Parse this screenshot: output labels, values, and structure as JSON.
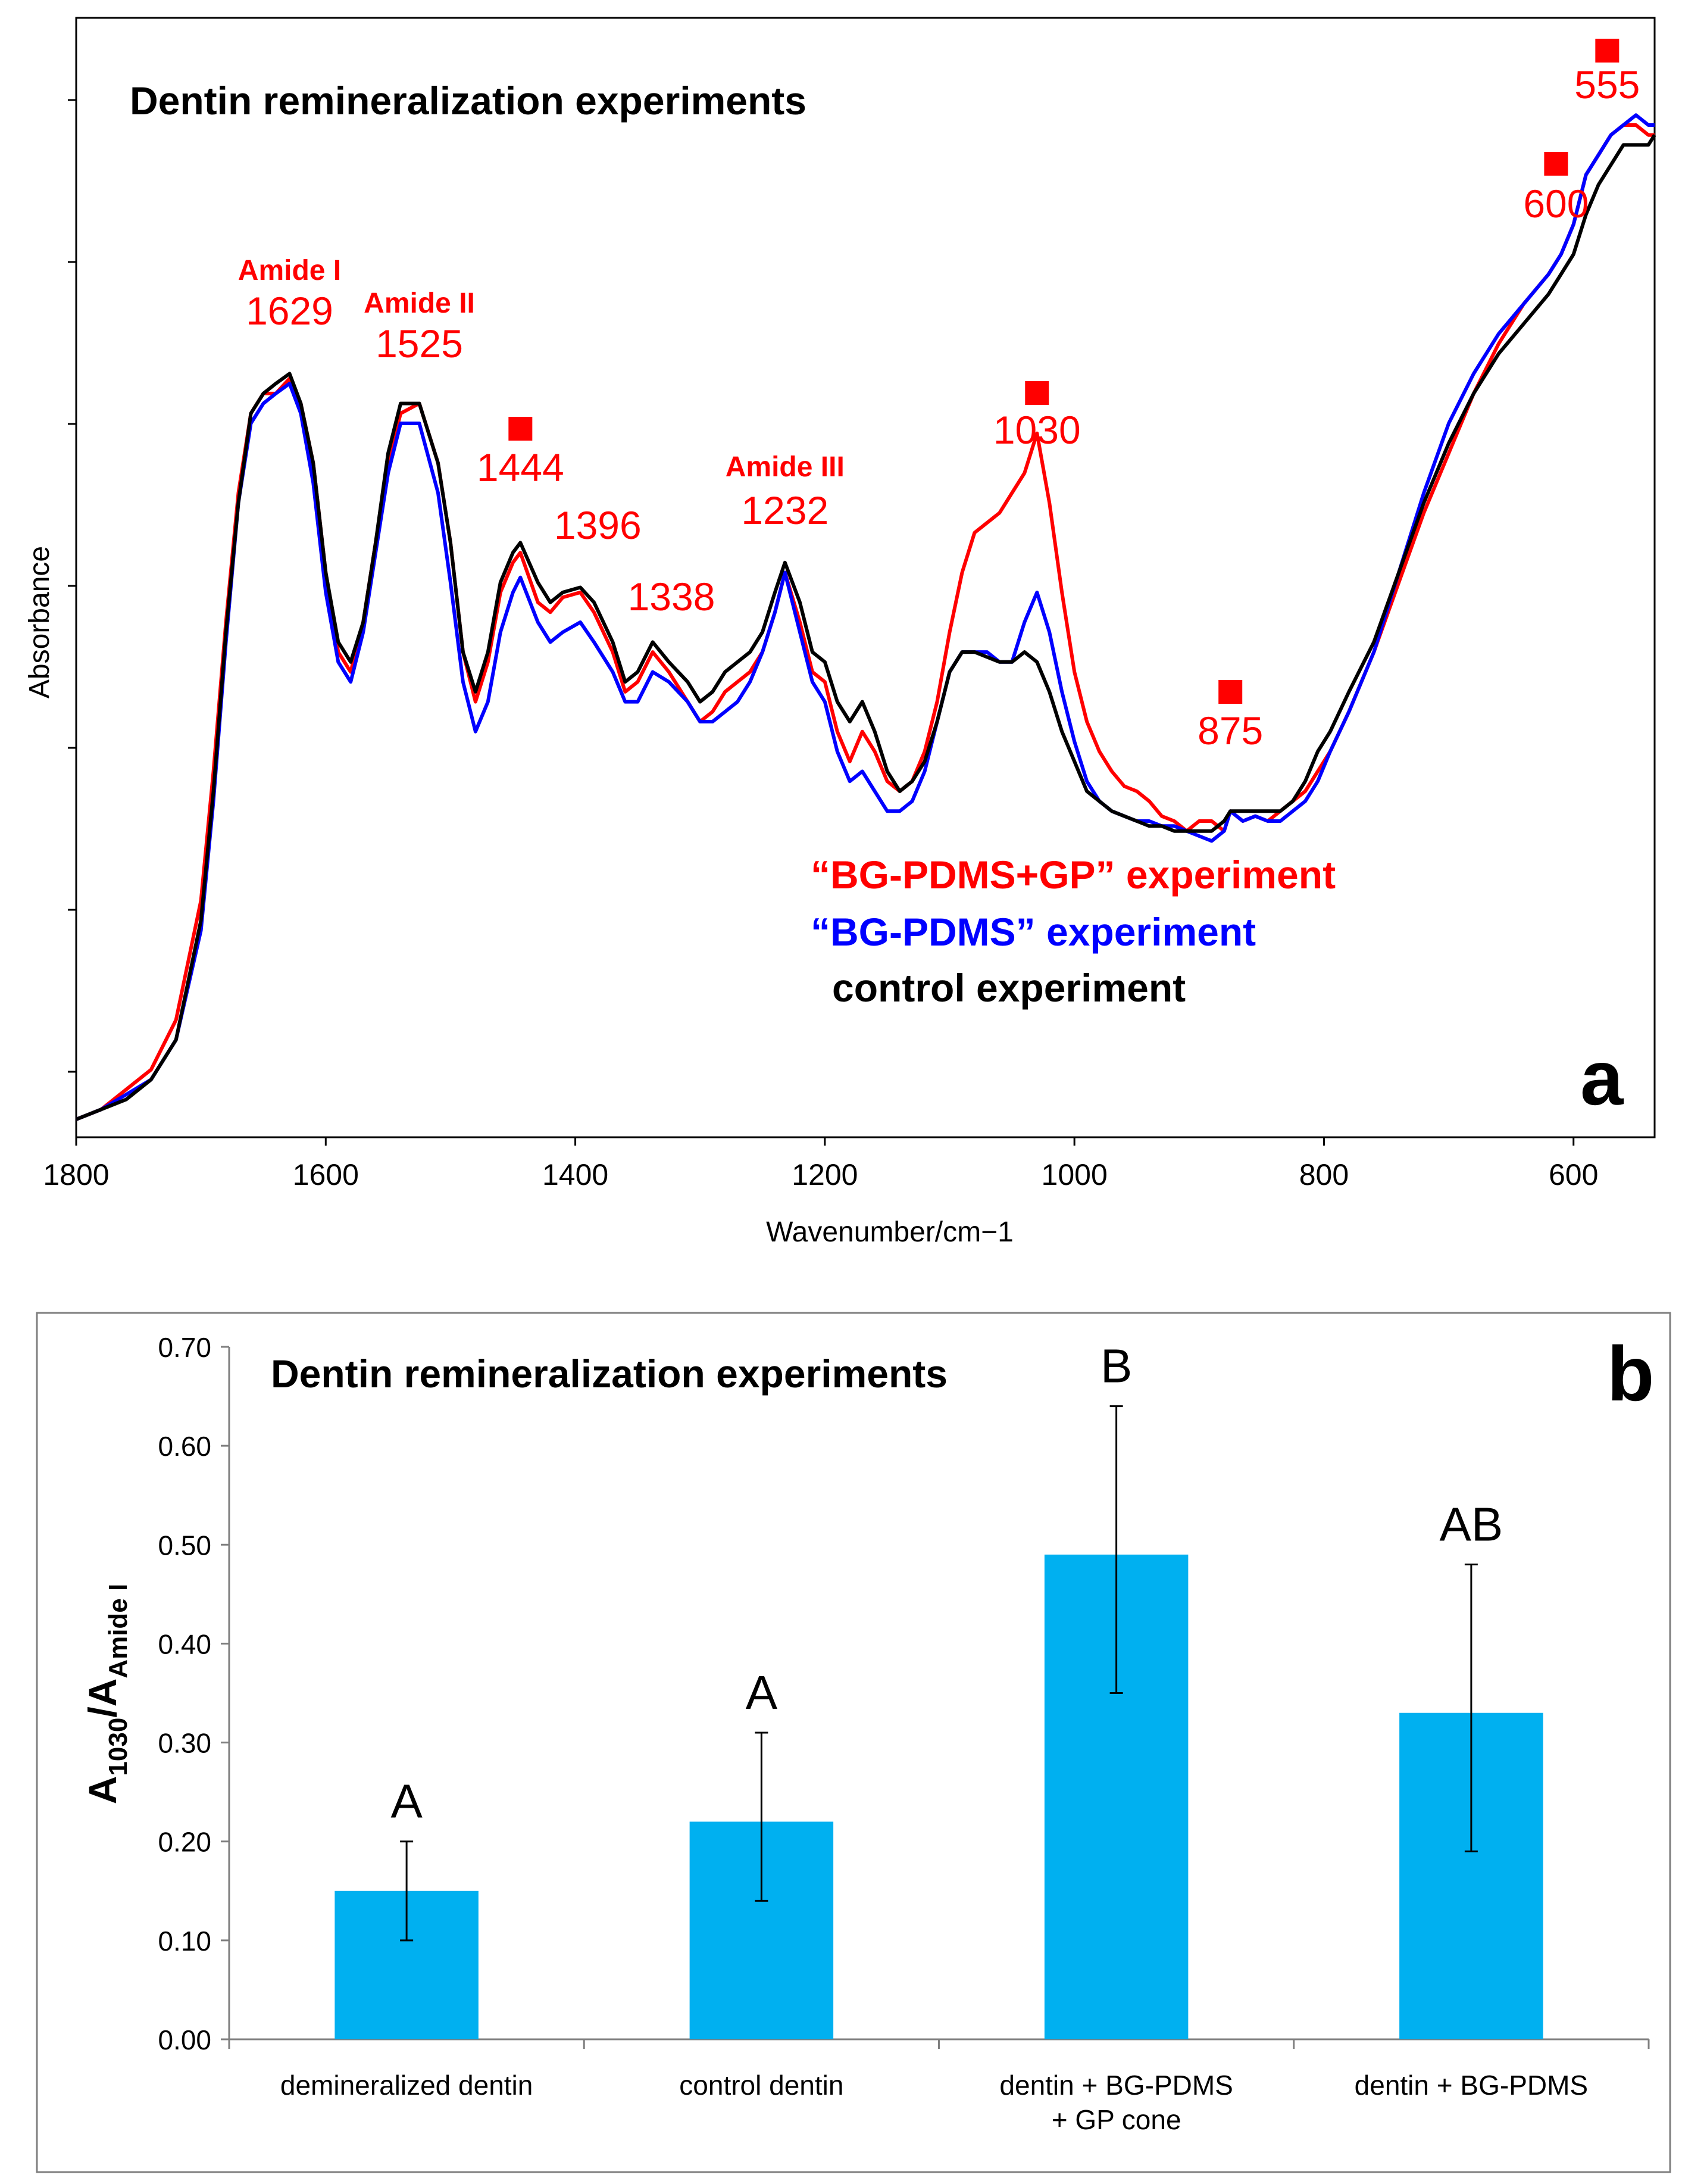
{
  "chart_data": [
    {
      "type": "line",
      "panel_label": "a",
      "title": "Dentin remineralization experiments",
      "xlabel": "Wavenumber/cm−1",
      "ylabel": "Absorbance",
      "xlim": [
        1800,
        535
      ],
      "ylim": [
        0,
        1
      ],
      "x_ticks": [
        "1800",
        "1600",
        "1400",
        "1200",
        "1000",
        "800",
        "600"
      ],
      "x_tick_values": [
        1800,
        1600,
        1400,
        1200,
        1000,
        800,
        600
      ],
      "y_tick_count": 7,
      "colors": {
        "bg_pdms_gp": "#ff0000",
        "bg_pdms": "#0000ff",
        "control": "#000000",
        "marker": "#ff0000"
      },
      "legend": [
        {
          "name": "“BG-PDMS+GP” experiment",
          "color": "#ff0000"
        },
        {
          "name": "“BG-PDMS” experiment",
          "color": "#0000ff"
        },
        {
          "name": "control experiment",
          "color": "#000000"
        }
      ],
      "annotations": [
        {
          "title": "Amide I",
          "label": "1629",
          "x": 1629
        },
        {
          "title": "Amide II",
          "label": "1525",
          "x": 1525
        },
        {
          "label": "1444",
          "x": 1444,
          "marker": true
        },
        {
          "label": "1396",
          "x": 1396
        },
        {
          "label": "1338",
          "x": 1338
        },
        {
          "title": "Amide III",
          "label": "1232",
          "x": 1232
        },
        {
          "label": "1030",
          "x": 1030,
          "marker": true
        },
        {
          "label": "875",
          "x": 875,
          "marker": true
        },
        {
          "label": "600",
          "x": 600,
          "marker": true
        },
        {
          "label": "555",
          "x": 555,
          "marker": true
        }
      ],
      "series": [
        {
          "name": "“BG-PDMS+GP” experiment",
          "color": "#ff0000",
          "x": [
            1800,
            1780,
            1760,
            1740,
            1720,
            1700,
            1690,
            1680,
            1670,
            1660,
            1650,
            1640,
            1629,
            1620,
            1610,
            1600,
            1590,
            1580,
            1570,
            1560,
            1550,
            1540,
            1525,
            1510,
            1500,
            1490,
            1480,
            1470,
            1460,
            1450,
            1444,
            1430,
            1420,
            1410,
            1396,
            1385,
            1370,
            1360,
            1350,
            1338,
            1325,
            1310,
            1300,
            1290,
            1280,
            1270,
            1260,
            1250,
            1240,
            1232,
            1220,
            1210,
            1200,
            1190,
            1180,
            1170,
            1160,
            1150,
            1140,
            1130,
            1120,
            1110,
            1100,
            1090,
            1080,
            1070,
            1060,
            1050,
            1040,
            1030,
            1020,
            1010,
            1000,
            990,
            980,
            970,
            960,
            950,
            940,
            930,
            920,
            910,
            900,
            890,
            880,
            875,
            865,
            855,
            845,
            835,
            825,
            815,
            805,
            795,
            780,
            760,
            740,
            720,
            700,
            680,
            660,
            640,
            620,
            610,
            600,
            590,
            580,
            570,
            560,
            550,
            540,
            535
          ],
          "y": [
            0.0,
            0.01,
            0.03,
            0.05,
            0.1,
            0.22,
            0.35,
            0.5,
            0.63,
            0.71,
            0.73,
            0.73,
            0.745,
            0.72,
            0.66,
            0.55,
            0.47,
            0.45,
            0.5,
            0.58,
            0.66,
            0.71,
            0.72,
            0.66,
            0.58,
            0.47,
            0.42,
            0.46,
            0.53,
            0.56,
            0.57,
            0.52,
            0.51,
            0.525,
            0.53,
            0.51,
            0.47,
            0.43,
            0.44,
            0.47,
            0.45,
            0.42,
            0.4,
            0.41,
            0.43,
            0.44,
            0.45,
            0.47,
            0.51,
            0.55,
            0.5,
            0.45,
            0.44,
            0.39,
            0.36,
            0.39,
            0.37,
            0.34,
            0.33,
            0.34,
            0.37,
            0.42,
            0.49,
            0.55,
            0.59,
            0.6,
            0.61,
            0.63,
            0.65,
            0.69,
            0.62,
            0.53,
            0.45,
            0.4,
            0.37,
            0.35,
            0.335,
            0.33,
            0.32,
            0.305,
            0.3,
            0.29,
            0.3,
            0.3,
            0.29,
            0.31,
            0.3,
            0.305,
            0.3,
            0.31,
            0.32,
            0.33,
            0.35,
            0.37,
            0.41,
            0.47,
            0.54,
            0.61,
            0.67,
            0.73,
            0.78,
            0.82,
            0.85,
            0.87,
            0.9,
            0.95,
            0.97,
            0.99,
            1.0,
            1.0,
            0.99,
            0.99
          ]
        },
        {
          "name": "“BG-PDMS” experiment",
          "color": "#0000ff",
          "x": [
            1800,
            1780,
            1760,
            1740,
            1720,
            1700,
            1690,
            1680,
            1670,
            1660,
            1650,
            1640,
            1629,
            1620,
            1610,
            1600,
            1590,
            1580,
            1570,
            1560,
            1550,
            1540,
            1525,
            1510,
            1500,
            1490,
            1480,
            1470,
            1460,
            1450,
            1444,
            1430,
            1420,
            1410,
            1396,
            1385,
            1370,
            1360,
            1350,
            1338,
            1325,
            1310,
            1300,
            1290,
            1280,
            1270,
            1260,
            1250,
            1240,
            1232,
            1220,
            1210,
            1200,
            1190,
            1180,
            1170,
            1160,
            1150,
            1140,
            1130,
            1120,
            1110,
            1100,
            1090,
            1080,
            1070,
            1060,
            1050,
            1040,
            1030,
            1020,
            1010,
            1000,
            990,
            980,
            970,
            960,
            950,
            940,
            930,
            920,
            910,
            900,
            890,
            880,
            875,
            865,
            855,
            845,
            835,
            825,
            815,
            805,
            795,
            780,
            760,
            740,
            720,
            700,
            680,
            660,
            640,
            620,
            610,
            600,
            590,
            580,
            570,
            560,
            550,
            540,
            535
          ],
          "y": [
            0.0,
            0.01,
            0.025,
            0.04,
            0.08,
            0.19,
            0.32,
            0.48,
            0.62,
            0.7,
            0.72,
            0.73,
            0.74,
            0.71,
            0.64,
            0.53,
            0.46,
            0.44,
            0.49,
            0.57,
            0.65,
            0.7,
            0.7,
            0.63,
            0.54,
            0.44,
            0.39,
            0.42,
            0.49,
            0.53,
            0.545,
            0.5,
            0.48,
            0.49,
            0.5,
            0.48,
            0.45,
            0.42,
            0.42,
            0.45,
            0.44,
            0.42,
            0.4,
            0.4,
            0.41,
            0.42,
            0.44,
            0.47,
            0.51,
            0.55,
            0.49,
            0.44,
            0.42,
            0.37,
            0.34,
            0.35,
            0.33,
            0.31,
            0.31,
            0.32,
            0.35,
            0.4,
            0.45,
            0.47,
            0.47,
            0.47,
            0.46,
            0.46,
            0.5,
            0.53,
            0.49,
            0.43,
            0.38,
            0.34,
            0.32,
            0.31,
            0.305,
            0.3,
            0.3,
            0.295,
            0.295,
            0.29,
            0.285,
            0.28,
            0.29,
            0.31,
            0.3,
            0.305,
            0.3,
            0.3,
            0.31,
            0.32,
            0.34,
            0.37,
            0.41,
            0.47,
            0.55,
            0.63,
            0.7,
            0.75,
            0.79,
            0.82,
            0.85,
            0.87,
            0.9,
            0.95,
            0.97,
            0.99,
            1.0,
            1.01,
            1.0,
            1.0
          ]
        },
        {
          "name": "control experiment",
          "color": "#000000",
          "x": [
            1800,
            1780,
            1760,
            1740,
            1720,
            1700,
            1690,
            1680,
            1670,
            1660,
            1650,
            1640,
            1629,
            1620,
            1610,
            1600,
            1590,
            1580,
            1570,
            1560,
            1550,
            1540,
            1525,
            1510,
            1500,
            1490,
            1480,
            1470,
            1460,
            1450,
            1444,
            1430,
            1420,
            1410,
            1396,
            1385,
            1370,
            1360,
            1350,
            1338,
            1325,
            1310,
            1300,
            1290,
            1280,
            1270,
            1260,
            1250,
            1240,
            1232,
            1220,
            1210,
            1200,
            1190,
            1180,
            1170,
            1160,
            1150,
            1140,
            1130,
            1120,
            1110,
            1100,
            1090,
            1080,
            1070,
            1060,
            1050,
            1040,
            1030,
            1020,
            1010,
            1000,
            990,
            980,
            970,
            960,
            950,
            940,
            930,
            920,
            910,
            900,
            890,
            880,
            875,
            865,
            855,
            845,
            835,
            825,
            815,
            805,
            795,
            780,
            760,
            740,
            720,
            700,
            680,
            660,
            640,
            620,
            610,
            600,
            590,
            580,
            570,
            560,
            550,
            540,
            535
          ],
          "y": [
            0.0,
            0.01,
            0.02,
            0.04,
            0.08,
            0.2,
            0.33,
            0.49,
            0.62,
            0.71,
            0.73,
            0.74,
            0.75,
            0.72,
            0.66,
            0.55,
            0.48,
            0.46,
            0.5,
            0.58,
            0.67,
            0.72,
            0.72,
            0.66,
            0.58,
            0.47,
            0.43,
            0.47,
            0.54,
            0.57,
            0.58,
            0.54,
            0.52,
            0.53,
            0.535,
            0.52,
            0.48,
            0.44,
            0.45,
            0.48,
            0.46,
            0.44,
            0.42,
            0.43,
            0.45,
            0.46,
            0.47,
            0.49,
            0.53,
            0.56,
            0.52,
            0.47,
            0.46,
            0.42,
            0.4,
            0.42,
            0.39,
            0.35,
            0.33,
            0.34,
            0.36,
            0.4,
            0.45,
            0.47,
            0.47,
            0.465,
            0.46,
            0.46,
            0.47,
            0.46,
            0.43,
            0.39,
            0.36,
            0.33,
            0.32,
            0.31,
            0.305,
            0.3,
            0.295,
            0.295,
            0.29,
            0.29,
            0.29,
            0.29,
            0.3,
            0.31,
            0.31,
            0.31,
            0.31,
            0.31,
            0.32,
            0.34,
            0.37,
            0.39,
            0.43,
            0.48,
            0.55,
            0.62,
            0.68,
            0.73,
            0.77,
            0.8,
            0.83,
            0.85,
            0.87,
            0.91,
            0.94,
            0.96,
            0.98,
            0.98,
            0.98,
            0.99
          ]
        }
      ]
    },
    {
      "type": "bar",
      "panel_label": "b",
      "title": "Dentin remineralization experiments",
      "ylabel_main": "A",
      "ylabel_sub1": "1030",
      "ylabel_slash": "/A",
      "ylabel_sub2": "Amide I",
      "ylim": [
        0,
        0.7
      ],
      "y_ticks": [
        "0.00",
        "0.10",
        "0.20",
        "0.30",
        "0.40",
        "0.50",
        "0.60",
        "0.70"
      ],
      "y_tick_values": [
        0,
        0.1,
        0.2,
        0.3,
        0.4,
        0.5,
        0.6,
        0.7
      ],
      "bar_color": "#00b0f0",
      "categories": [
        [
          "demineralized dentin"
        ],
        [
          "control dentin"
        ],
        [
          "dentin + BG-PDMS",
          "+ GP cone"
        ],
        [
          "dentin + BG-PDMS"
        ]
      ],
      "values": [
        0.15,
        0.22,
        0.49,
        0.33
      ],
      "error_low": [
        0.1,
        0.14,
        0.35,
        0.19
      ],
      "error_high": [
        0.2,
        0.31,
        0.64,
        0.48
      ],
      "significance": [
        "A",
        "A",
        "B",
        "AB"
      ]
    }
  ]
}
